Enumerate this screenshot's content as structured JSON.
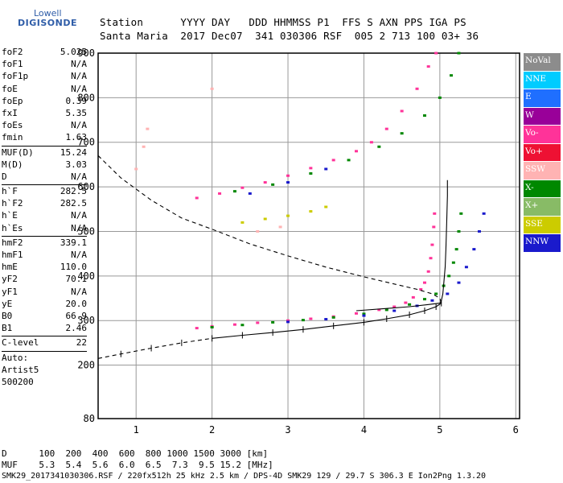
{
  "logo": {
    "line1": "Lowell",
    "line2": "DIGISONDE"
  },
  "header": {
    "line1": "Station      YYYY DAY   DDD HHMMSS P1  FFS S AXN PPS IGA PS",
    "line2": "Santa Maria  2017 Dec07  341 030306 RSF  005 2 713 100 03+ 36"
  },
  "params_group1": [
    {
      "key": "foF2",
      "value": "5.025"
    },
    {
      "key": "foF1",
      "value": "N/A"
    },
    {
      "key": "foF1p",
      "value": "N/A"
    },
    {
      "key": "foE",
      "value": "N/A"
    },
    {
      "key": "foEp",
      "value": "0.39"
    },
    {
      "key": "fxI",
      "value": "5.35"
    },
    {
      "key": "foEs",
      "value": "N/A"
    },
    {
      "key": "fmin",
      "value": "1.63"
    }
  ],
  "params_group2": [
    {
      "key": "MUF(D)",
      "value": "15.24"
    },
    {
      "key": "M(D)",
      "value": "3.03"
    },
    {
      "key": "D",
      "value": "N/A"
    }
  ],
  "params_group3": [
    {
      "key": "h`F",
      "value": "282.5"
    },
    {
      "key": "h`F2",
      "value": "282.5"
    },
    {
      "key": "h`E",
      "value": "N/A"
    },
    {
      "key": "h`Es",
      "value": "N/A"
    }
  ],
  "params_group4": [
    {
      "key": "hmF2",
      "value": "339.1"
    },
    {
      "key": "hmF1",
      "value": "N/A"
    },
    {
      "key": "hmE",
      "value": "110.0"
    },
    {
      "key": "yF2",
      "value": "70.1"
    },
    {
      "key": "yF1",
      "value": "N/A"
    },
    {
      "key": "yE",
      "value": "20.0"
    },
    {
      "key": "B0",
      "value": "66.9"
    },
    {
      "key": "B1",
      "value": "2.46"
    }
  ],
  "params_group5": [
    {
      "key": "C-level",
      "value": "22"
    }
  ],
  "autoscale": {
    "line1": "Auto:",
    "line2": "Artist5",
    "line3": "500200"
  },
  "footer": {
    "d_row": "D      100  200  400  600  800 1000 1500 3000 [km]",
    "muf_row": "MUF    5.3  5.4  5.6  6.0  6.5  7.3  9.5 15.2 [MHz]",
    "file_row": "SMK29_2017341030306.RSF / 220fx512h 25 kHz 2.5 km / DPS-4D SMK29 129 / 29.7 S 306.3 E Ion2Png 1.3.20"
  },
  "legend": [
    {
      "label": "NoVal",
      "color": "#8c8c8c"
    },
    {
      "label": "NNE",
      "color": "#00ccff"
    },
    {
      "label": "E",
      "color": "#1f6fff"
    },
    {
      "label": "W",
      "color": "#990099"
    },
    {
      "label": "Vo-",
      "color": "#ff3399"
    },
    {
      "label": "Vo+",
      "color": "#ee1133"
    },
    {
      "label": "SSW",
      "color": "#ffb3b3"
    },
    {
      "label": "X-",
      "color": "#008800"
    },
    {
      "label": "X+",
      "color": "#88bb66"
    },
    {
      "label": "SSE",
      "color": "#cccc00"
    },
    {
      "label": "NNW",
      "color": "#1a1acc"
    }
  ],
  "chart_data": {
    "type": "scatter",
    "xlabel": "",
    "ylabel": "",
    "xlim": [
      0.5,
      6.05
    ],
    "ylim": [
      80,
      900
    ],
    "x_ticks": [
      1,
      2,
      3,
      4,
      5,
      6
    ],
    "y_ticks": [
      80,
      200,
      300,
      400,
      500,
      600,
      700,
      800,
      900
    ],
    "grid": true,
    "legend_position": "right",
    "series": [
      {
        "name": "Vo-",
        "color": "#ff3399",
        "points": [
          [
            1.8,
            283
          ],
          [
            2.0,
            287
          ],
          [
            2.3,
            291
          ],
          [
            2.6,
            295
          ],
          [
            3.0,
            300
          ],
          [
            3.3,
            304
          ],
          [
            3.6,
            309
          ],
          [
            3.9,
            316
          ],
          [
            4.2,
            324
          ],
          [
            4.4,
            331
          ],
          [
            4.55,
            340
          ],
          [
            4.65,
            352
          ],
          [
            4.75,
            370
          ],
          [
            4.8,
            385
          ],
          [
            4.85,
            410
          ],
          [
            4.88,
            440
          ],
          [
            4.9,
            470
          ],
          [
            4.92,
            510
          ],
          [
            4.93,
            540
          ],
          [
            1.8,
            575
          ],
          [
            2.1,
            585
          ],
          [
            2.4,
            598
          ],
          [
            2.7,
            610
          ],
          [
            3.0,
            625
          ],
          [
            3.3,
            642
          ],
          [
            3.6,
            660
          ],
          [
            3.9,
            680
          ],
          [
            4.1,
            700
          ],
          [
            4.3,
            730
          ],
          [
            4.5,
            770
          ],
          [
            4.7,
            820
          ],
          [
            4.85,
            870
          ],
          [
            4.95,
            900
          ]
        ]
      },
      {
        "name": "X-",
        "color": "#008800",
        "points": [
          [
            2.0,
            285
          ],
          [
            2.4,
            290
          ],
          [
            2.8,
            296
          ],
          [
            3.2,
            301
          ],
          [
            3.6,
            307
          ],
          [
            4.0,
            315
          ],
          [
            4.3,
            324
          ],
          [
            4.6,
            336
          ],
          [
            4.8,
            348
          ],
          [
            4.95,
            360
          ],
          [
            5.05,
            378
          ],
          [
            5.12,
            400
          ],
          [
            5.18,
            430
          ],
          [
            5.22,
            460
          ],
          [
            5.25,
            500
          ],
          [
            5.28,
            540
          ],
          [
            2.3,
            590
          ],
          [
            2.8,
            605
          ],
          [
            3.3,
            630
          ],
          [
            3.8,
            660
          ],
          [
            4.2,
            690
          ],
          [
            4.5,
            720
          ],
          [
            4.8,
            760
          ],
          [
            5.0,
            800
          ],
          [
            5.15,
            850
          ],
          [
            5.25,
            900
          ]
        ]
      },
      {
        "name": "NNW",
        "color": "#1a1acc",
        "points": [
          [
            3.0,
            297
          ],
          [
            3.5,
            303
          ],
          [
            4.0,
            311
          ],
          [
            4.4,
            322
          ],
          [
            4.7,
            333
          ],
          [
            4.9,
            345
          ],
          [
            5.1,
            360
          ],
          [
            5.25,
            385
          ],
          [
            5.35,
            420
          ],
          [
            5.45,
            460
          ],
          [
            5.52,
            500
          ],
          [
            5.58,
            540
          ],
          [
            2.5,
            585
          ],
          [
            3.0,
            610
          ],
          [
            3.5,
            640
          ]
        ]
      },
      {
        "name": "SSE",
        "color": "#cccc00",
        "points": [
          [
            2.4,
            520
          ],
          [
            2.7,
            528
          ],
          [
            3.0,
            535
          ],
          [
            3.3,
            545
          ],
          [
            3.5,
            555
          ]
        ]
      },
      {
        "name": "SSW",
        "color": "#ffb3b3",
        "points": [
          [
            1.0,
            640
          ],
          [
            1.1,
            690
          ],
          [
            1.15,
            730
          ],
          [
            2.0,
            820
          ],
          [
            2.6,
            500
          ],
          [
            2.9,
            510
          ]
        ]
      }
    ],
    "profile_dashed": [
      [
        0.5,
        670
      ],
      [
        0.8,
        620
      ],
      [
        1.2,
        570
      ],
      [
        1.6,
        530
      ],
      [
        2.0,
        505
      ],
      [
        2.5,
        472
      ],
      [
        3.0,
        445
      ],
      [
        3.5,
        420
      ],
      [
        4.0,
        398
      ],
      [
        4.4,
        382
      ],
      [
        4.7,
        370
      ],
      [
        4.9,
        360
      ],
      [
        5.0,
        350
      ],
      [
        5.02,
        339
      ]
    ],
    "profile_solid": [
      [
        3.9,
        322
      ],
      [
        4.3,
        327
      ],
      [
        4.6,
        331
      ],
      [
        4.85,
        336
      ],
      [
        5.0,
        339
      ],
      [
        5.02,
        345
      ],
      [
        5.04,
        360
      ],
      [
        5.05,
        380
      ],
      [
        5.07,
        420
      ],
      [
        5.08,
        460
      ],
      [
        5.09,
        520
      ],
      [
        5.1,
        580
      ],
      [
        5.1,
        615
      ]
    ],
    "virtual_trace": [
      [
        0.5,
        215
      ],
      [
        0.8,
        225
      ],
      [
        1.2,
        238
      ],
      [
        1.6,
        250
      ],
      [
        2.0,
        260
      ],
      [
        2.4,
        267
      ],
      [
        2.8,
        273
      ],
      [
        3.2,
        280
      ],
      [
        3.6,
        288
      ],
      [
        4.0,
        296
      ],
      [
        4.3,
        304
      ],
      [
        4.6,
        313
      ],
      [
        4.8,
        322
      ],
      [
        4.95,
        331
      ],
      [
        5.02,
        339
      ]
    ],
    "dashed_lower_limit": 2.0
  }
}
